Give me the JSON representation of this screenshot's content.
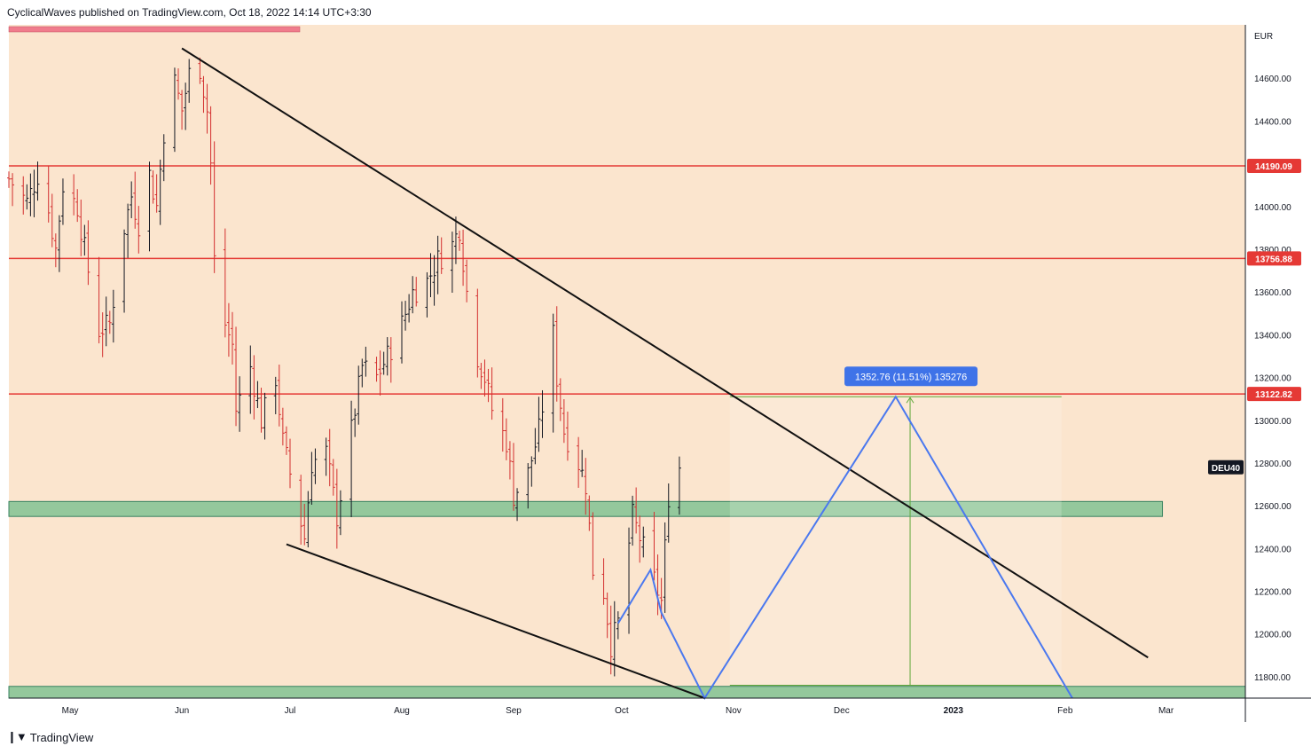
{
  "header": {
    "published": "CyclicalWaves published on TradingView.com, Oct 18, 2022 14:14 UTC+3:30"
  },
  "footer": {
    "brand": "TradingView",
    "logo_icon": "tradingview-logo-icon"
  },
  "colors": {
    "background": "#fbe5ce",
    "candle_up": "#131722",
    "candle_down": "#d32f2f",
    "resistance": "#e53935",
    "support_zone": "#8fc79a",
    "trendline": "#111111",
    "projection": "#4a78ef",
    "measure": "#5fa83a",
    "measure_label_bg": "#3f73e8",
    "top_bar": "#f07c8c"
  },
  "chart_data": {
    "type": "candlestick",
    "symbol": "DEU40",
    "currency": "EUR",
    "ylim": [
      11700,
      14850
    ],
    "y_ticks": [
      11800,
      12000,
      12200,
      12400,
      12600,
      12800,
      13000,
      13200,
      13400,
      13600,
      13800,
      14000,
      14200,
      14400,
      14600
    ],
    "y_tick_labels": [
      "11800.00",
      "12000.00",
      "12200.00",
      "12400.00",
      "12600.00",
      "12800.00",
      "13000.00",
      "13200.00",
      "13400.00",
      "13600.00",
      "13800.00",
      "14000.00",
      "14200.00",
      "14400.00",
      "14600.00"
    ],
    "x_range": [
      "2022-04-14",
      "2023-03-23"
    ],
    "x_ticks": [
      {
        "date": "2022-05-01",
        "label": "May"
      },
      {
        "date": "2022-06-01",
        "label": "Jun"
      },
      {
        "date": "2022-07-01",
        "label": "Jul"
      },
      {
        "date": "2022-08-01",
        "label": "Aug"
      },
      {
        "date": "2022-09-01",
        "label": "Sep"
      },
      {
        "date": "2022-10-01",
        "label": "Oct"
      },
      {
        "date": "2022-11-01",
        "label": "Nov"
      },
      {
        "date": "2022-12-01",
        "label": "Dec"
      },
      {
        "date": "2023-01-01",
        "label": "2023"
      },
      {
        "date": "2023-02-01",
        "label": "Feb"
      },
      {
        "date": "2023-03-01",
        "label": "Mar"
      }
    ],
    "daily_closes": [
      {
        "date": "2022-04-14",
        "close": 14130
      },
      {
        "date": "2022-04-19",
        "close": 14020
      },
      {
        "date": "2022-04-22",
        "close": 14150
      },
      {
        "date": "2022-04-25",
        "close": 13980
      },
      {
        "date": "2022-04-27",
        "close": 13800
      },
      {
        "date": "2022-04-29",
        "close": 14100
      },
      {
        "date": "2022-05-03",
        "close": 14000
      },
      {
        "date": "2022-05-06",
        "close": 13700
      },
      {
        "date": "2022-05-09",
        "close": 13420
      },
      {
        "date": "2022-05-12",
        "close": 13450
      },
      {
        "date": "2022-05-16",
        "close": 13900
      },
      {
        "date": "2022-05-18",
        "close": 14050
      },
      {
        "date": "2022-05-20",
        "close": 13920
      },
      {
        "date": "2022-05-23",
        "close": 14150
      },
      {
        "date": "2022-05-25",
        "close": 14000
      },
      {
        "date": "2022-05-27",
        "close": 14350
      },
      {
        "date": "2022-05-30",
        "close": 14580
      },
      {
        "date": "2022-06-01",
        "close": 14450
      },
      {
        "date": "2022-06-03",
        "close": 14620
      },
      {
        "date": "2022-06-06",
        "close": 14650
      },
      {
        "date": "2022-06-08",
        "close": 14450
      },
      {
        "date": "2022-06-09",
        "close": 14200
      },
      {
        "date": "2022-06-10",
        "close": 13750
      },
      {
        "date": "2022-06-13",
        "close": 13450
      },
      {
        "date": "2022-06-15",
        "close": 13350
      },
      {
        "date": "2022-06-16",
        "close": 13050
      },
      {
        "date": "2022-06-20",
        "close": 13250
      },
      {
        "date": "2022-06-23",
        "close": 13000
      },
      {
        "date": "2022-06-27",
        "close": 13200
      },
      {
        "date": "2022-06-29",
        "close": 12900
      },
      {
        "date": "2022-07-01",
        "close": 12750
      },
      {
        "date": "2022-07-05",
        "close": 12450
      },
      {
        "date": "2022-07-07",
        "close": 12800
      },
      {
        "date": "2022-07-11",
        "close": 12850
      },
      {
        "date": "2022-07-14",
        "close": 12550
      },
      {
        "date": "2022-07-18",
        "close": 12950
      },
      {
        "date": "2022-07-21",
        "close": 13250
      },
      {
        "date": "2022-07-25",
        "close": 13200
      },
      {
        "date": "2022-07-28",
        "close": 13300
      },
      {
        "date": "2022-08-01",
        "close": 13450
      },
      {
        "date": "2022-08-04",
        "close": 13600
      },
      {
        "date": "2022-08-08",
        "close": 13650
      },
      {
        "date": "2022-08-11",
        "close": 13750
      },
      {
        "date": "2022-08-15",
        "close": 13820
      },
      {
        "date": "2022-08-17",
        "close": 13900
      },
      {
        "date": "2022-08-19",
        "close": 13600
      },
      {
        "date": "2022-08-22",
        "close": 13300
      },
      {
        "date": "2022-08-24",
        "close": 13200
      },
      {
        "date": "2022-08-26",
        "close": 13050
      },
      {
        "date": "2022-08-30",
        "close": 12900
      },
      {
        "date": "2022-09-01",
        "close": 12650
      },
      {
        "date": "2022-09-05",
        "close": 12750
      },
      {
        "date": "2022-09-08",
        "close": 12950
      },
      {
        "date": "2022-09-12",
        "close": 13400
      },
      {
        "date": "2022-09-13",
        "close": 13200
      },
      {
        "date": "2022-09-15",
        "close": 12950
      },
      {
        "date": "2022-09-19",
        "close": 12800
      },
      {
        "date": "2022-09-21",
        "close": 12700
      },
      {
        "date": "2022-09-23",
        "close": 12300
      },
      {
        "date": "2022-09-26",
        "close": 12200
      },
      {
        "date": "2022-09-28",
        "close": 11950
      },
      {
        "date": "2022-09-30",
        "close": 12050
      },
      {
        "date": "2022-10-04",
        "close": 12550
      },
      {
        "date": "2022-10-06",
        "close": 12450
      },
      {
        "date": "2022-10-10",
        "close": 12250
      },
      {
        "date": "2022-10-12",
        "close": 12150
      },
      {
        "date": "2022-10-13",
        "close": 12400
      },
      {
        "date": "2022-10-14",
        "close": 12650
      },
      {
        "date": "2022-10-17",
        "close": 12780
      }
    ],
    "horizontal_lines": [
      {
        "price": 14190.09,
        "label": "14190.09"
      },
      {
        "price": 13756.88,
        "label": "13756.88"
      },
      {
        "price": 13122.82,
        "label": "13122.82"
      }
    ],
    "symbol_label": "DEU40",
    "symbol_label_price": 12780,
    "support_zones": [
      {
        "from_price": 12550,
        "to_price": 12620,
        "x_end": "2023-02-28"
      },
      {
        "from_price": 11700,
        "to_price": 11755,
        "x_end": "2023-03-23"
      }
    ],
    "trendlines": [
      {
        "start": {
          "date": "2022-06-01",
          "price": 14740
        },
        "end": {
          "date": "2023-02-24",
          "price": 11890
        }
      },
      {
        "start": {
          "date": "2022-06-30",
          "price": 12420
        },
        "end": {
          "date": "2022-10-24",
          "price": 11700
        }
      }
    ],
    "projection_path": [
      {
        "date": "2022-09-30",
        "price": 12050
      },
      {
        "date": "2022-10-09",
        "price": 12300
      },
      {
        "date": "2022-10-12",
        "price": 12100
      },
      {
        "date": "2022-10-24",
        "price": 11700
      },
      {
        "date": "2022-12-16",
        "price": 13110
      },
      {
        "date": "2023-02-03",
        "price": 11700
      }
    ],
    "measure_box": {
      "x_start": "2022-10-31",
      "x_end": "2023-01-31",
      "from_price": 11760,
      "to_price": 13110,
      "arrow_date": "2022-12-20",
      "label": "1352.76 (11.51%) 135276"
    }
  }
}
